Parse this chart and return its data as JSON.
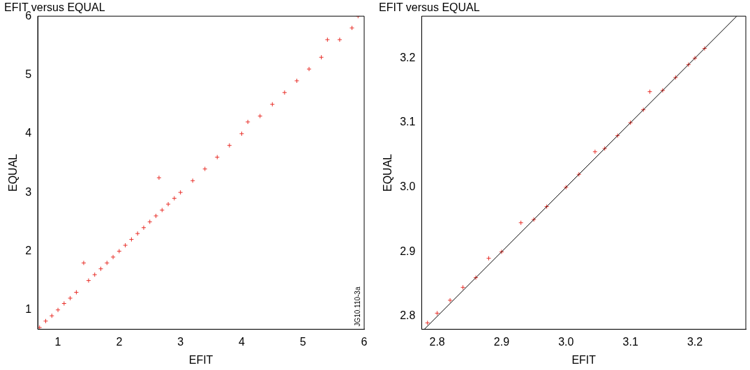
{
  "chart_data": [
    {
      "type": "scatter",
      "title": "EFIT versus EQUAL",
      "xlabel": "EFIT",
      "ylabel": "EQUAL",
      "xlim": [
        0.67,
        6
      ],
      "ylim": [
        0.67,
        6
      ],
      "xticks": [
        1,
        2,
        3,
        4,
        5,
        6
      ],
      "yticks": [
        1,
        2,
        3,
        4,
        5,
        6
      ],
      "grid": false,
      "legend": false,
      "marker": "cross",
      "annotations": [
        "JG10.110-3a"
      ],
      "series": [
        {
          "color": "#e8302a",
          "x": [
            0.7,
            0.8,
            0.9,
            1.0,
            1.1,
            1.2,
            1.3,
            1.42,
            1.5,
            1.6,
            1.7,
            1.8,
            1.9,
            2.0,
            2.1,
            2.2,
            2.3,
            2.4,
            2.5,
            2.6,
            2.65,
            2.7,
            2.8,
            2.9,
            3.0,
            3.2,
            3.4,
            3.6,
            3.8,
            4.0,
            4.1,
            4.3,
            4.5,
            4.7,
            4.9,
            5.1,
            5.3,
            5.4,
            5.6,
            5.8,
            5.9
          ],
          "values": [
            0.7,
            0.81,
            0.9,
            1.0,
            1.11,
            1.2,
            1.3,
            1.8,
            1.5,
            1.6,
            1.7,
            1.8,
            1.9,
            2.0,
            2.1,
            2.2,
            2.3,
            2.4,
            2.5,
            2.6,
            3.25,
            2.7,
            2.8,
            2.9,
            3.0,
            3.2,
            3.4,
            3.6,
            3.8,
            4.0,
            4.2,
            4.3,
            4.5,
            4.7,
            4.9,
            5.1,
            5.3,
            5.6,
            5.6,
            5.8,
            6.0
          ]
        }
      ]
    },
    {
      "type": "scatter",
      "title": "EFIT versus EQUAL",
      "xlabel": "EFIT",
      "ylabel": "EQUAL",
      "xlim": [
        2.776,
        3.279
      ],
      "ylim": [
        2.78,
        3.265
      ],
      "xticks": [
        2.8,
        2.9,
        {
          "value": 3,
          "label": "3.0"
        },
        3.1,
        3.2
      ],
      "yticks": [
        2.8,
        2.9,
        {
          "value": 3,
          "label": "3.0"
        },
        3.1,
        3.2
      ],
      "grid": false,
      "legend": false,
      "marker": "cross",
      "series": [
        {
          "type": "line",
          "marker": "none",
          "color": "#000000",
          "x": [
            2.78,
            3.265
          ],
          "values": [
            2.78,
            3.265
          ]
        },
        {
          "color": "#e8302a",
          "x": [
            2.785,
            2.8,
            2.82,
            2.84,
            2.86,
            2.88,
            2.9,
            2.93,
            2.95,
            2.97,
            3.0,
            3.02,
            3.045,
            3.06,
            3.08,
            3.1,
            3.12,
            3.13,
            3.15,
            3.17,
            3.19,
            3.2,
            3.215
          ],
          "values": [
            2.79,
            2.805,
            2.825,
            2.845,
            2.86,
            2.89,
            2.9,
            2.945,
            2.95,
            2.97,
            3.0,
            3.02,
            3.055,
            3.06,
            3.08,
            3.1,
            3.12,
            3.148,
            3.15,
            3.17,
            3.19,
            3.2,
            3.215
          ]
        }
      ]
    }
  ]
}
